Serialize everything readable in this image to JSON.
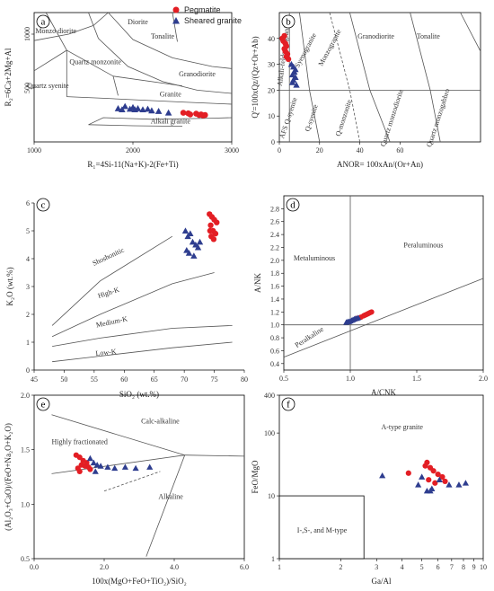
{
  "legend": {
    "items": [
      {
        "label": "Pegmatite",
        "marker": "circle",
        "color": "#e31e24"
      },
      {
        "label": "Sheared granite",
        "marker": "triangle",
        "color": "#2e3d8f"
      }
    ]
  },
  "chart_data": [
    {
      "panel": "a",
      "type": "scatter",
      "xlabel": "R₁=4Si-11(Na+K)-2(Fe+Ti)",
      "ylabel": "R₂=6Ca+2Mg+Al",
      "xlim": [
        1000,
        3000
      ],
      "ylim": [
        0,
        1200
      ],
      "xticks": [
        "1000",
        "2000",
        "3000"
      ],
      "yticks": [
        "500",
        "1000"
      ],
      "fields": [
        "Diorite",
        "Monzo diorite",
        "Tonalite",
        "Quartz monzonite",
        "Granodiorite",
        "Quartz syenite",
        "Granite",
        "Alkali granite"
      ],
      "series": [
        {
          "name": "Pegmatite",
          "x": [
            2510,
            2560,
            2580,
            2640,
            2670,
            2690,
            2710,
            2730
          ],
          "y": [
            270,
            265,
            255,
            262,
            250,
            255,
            245,
            250
          ]
        },
        {
          "name": "Sheared granite",
          "x": [
            1850,
            1890,
            1920,
            1970,
            2000,
            2020,
            2050,
            2100,
            2150,
            2190,
            2260,
            2360
          ],
          "y": [
            310,
            300,
            330,
            305,
            320,
            300,
            310,
            300,
            305,
            290,
            285,
            270
          ]
        }
      ]
    },
    {
      "panel": "b",
      "type": "scatter",
      "xlabel": "ANOR= 100xAn/(Or+An)",
      "ylabel": "Q'=100xQz/(Qz+Or+Ab)",
      "xlim": [
        0,
        100
      ],
      "ylim": [
        0,
        50
      ],
      "xticks": [
        "0",
        "20",
        "40",
        "60"
      ],
      "yticks": [
        "0",
        "10",
        "20",
        "30",
        "40"
      ],
      "fields": [
        "Alkali-feldspar granite",
        "Syenogranite",
        "Monzogranite",
        "Granodiorite",
        "Tonalite",
        "AFS Q-syenite",
        "Q-syenite",
        "Q-monzonite",
        "Quartz monzodiorite",
        "Quartz monzogabbro"
      ],
      "series": [
        {
          "name": "Pegmatite",
          "x": [
            1.5,
            2,
            2.5,
            3,
            3.5,
            2.5,
            3,
            4,
            3.5,
            4.5
          ],
          "y": [
            40,
            39,
            41,
            38,
            37,
            36,
            35,
            34,
            33,
            32
          ]
        },
        {
          "name": "Sheared granite",
          "x": [
            6,
            7,
            8,
            7.5,
            6.5,
            8,
            7,
            6.5,
            8.5
          ],
          "y": [
            30,
            29,
            28,
            27,
            26,
            25,
            24,
            23,
            22
          ]
        }
      ]
    },
    {
      "panel": "c",
      "type": "scatter",
      "xlabel": "SiO₂ (wt.%)",
      "ylabel": "K₂O (wt.%)",
      "xlim": [
        45,
        80
      ],
      "ylim": [
        0,
        6
      ],
      "xticks": [
        "45",
        "50",
        "55",
        "60",
        "65",
        "70",
        "75",
        "80"
      ],
      "yticks": [
        "0",
        "1",
        "2",
        "3",
        "4",
        "5",
        "6"
      ],
      "fields": [
        "Shoshonitic",
        "High-K",
        "Medium-K",
        "Low-K"
      ],
      "series": [
        {
          "name": "Pegmatite",
          "x": [
            74.2,
            74.6,
            75.0,
            74.4,
            74.8,
            75.2,
            74.5,
            74.9,
            75.4,
            74.3
          ],
          "y": [
            5.6,
            5.5,
            5.4,
            5.2,
            5.0,
            4.9,
            4.8,
            4.7,
            5.3,
            5.0
          ]
        },
        {
          "name": "Sheared granite",
          "x": [
            70.2,
            70.6,
            71.0,
            71.4,
            71.9,
            72.3,
            70.8,
            71.6,
            72.6,
            70.4
          ],
          "y": [
            5.0,
            4.8,
            4.9,
            4.6,
            4.5,
            4.4,
            4.2,
            4.1,
            4.6,
            4.3
          ]
        }
      ]
    },
    {
      "panel": "d",
      "type": "scatter",
      "xlabel": "A/CNK",
      "ylabel": "A/NK",
      "xlim": [
        0.5,
        2.0
      ],
      "ylim": [
        0.3,
        3.0
      ],
      "xticks": [
        "0.5",
        "1.0",
        "1.5",
        "2.0"
      ],
      "yticks": [
        "0.4",
        "0.6",
        "0.8",
        "1.0",
        "1.2",
        "1.4",
        "1.6",
        "1.8",
        "2.0",
        "2.2",
        "2.4",
        "2.6",
        "2.8"
      ],
      "fields": [
        "Metaluminous",
        "Peraluminous",
        "Peralkaline"
      ],
      "series": [
        {
          "name": "Pegmatite",
          "x": [
            1.05,
            1.08,
            1.1,
            1.12,
            1.14,
            1.16,
            1.11,
            1.13,
            1.15
          ],
          "y": [
            1.1,
            1.12,
            1.14,
            1.16,
            1.18,
            1.2,
            1.15,
            1.17,
            1.19
          ]
        },
        {
          "name": "Sheared granite",
          "x": [
            0.97,
            0.98,
            0.99,
            1.0,
            1.01,
            1.02,
            1.03,
            1.04,
            1.05,
            1.06
          ],
          "y": [
            1.04,
            1.05,
            1.05,
            1.06,
            1.07,
            1.08,
            1.09,
            1.1,
            1.1,
            1.11
          ]
        }
      ]
    },
    {
      "panel": "e",
      "type": "scatter",
      "xlabel": "100x(MgO+FeO+TiO₂)/SiO₂",
      "ylabel": "(Al₂O₃+CaO)/(FeO+Na₂O+K₂O)",
      "xlim": [
        0,
        6
      ],
      "ylim": [
        0.5,
        2.0
      ],
      "xticks": [
        "0.0",
        "2.0",
        "4.0",
        "6.0"
      ],
      "yticks": [
        "0.5",
        "1.0",
        "1.5",
        "2.0"
      ],
      "fields": [
        "Calc-alkaline",
        "Highly fractionated",
        "Alkaline"
      ],
      "series": [
        {
          "name": "Pegmatite",
          "x": [
            1.2,
            1.3,
            1.4,
            1.5,
            1.35,
            1.45,
            1.25,
            1.55,
            1.6,
            1.3
          ],
          "y": [
            1.45,
            1.43,
            1.4,
            1.38,
            1.36,
            1.35,
            1.33,
            1.34,
            1.32,
            1.3
          ]
        },
        {
          "name": "Sheared granite",
          "x": [
            1.6,
            1.7,
            1.8,
            1.9,
            2.1,
            2.3,
            2.6,
            2.9,
            3.3,
            1.75
          ],
          "y": [
            1.42,
            1.38,
            1.36,
            1.35,
            1.34,
            1.33,
            1.34,
            1.33,
            1.34,
            1.3
          ]
        }
      ]
    },
    {
      "panel": "f",
      "type": "scatter",
      "xlabel": "Ga/Al",
      "ylabel": "FeO/MgO",
      "xscale": "log",
      "yscale": "log",
      "xlim": [
        1,
        10
      ],
      "ylim": [
        1,
        400
      ],
      "xticks": [
        "1",
        "2",
        "3",
        "4",
        "5",
        "6",
        "7",
        "8",
        "9",
        "10"
      ],
      "yticks": [
        "1",
        "10",
        "100",
        "400"
      ],
      "fields": [
        "A-type granite",
        "I-,S-, and M-type"
      ],
      "series": [
        {
          "name": "Pegmatite",
          "x": [
            4.3,
            5.3,
            5.5,
            5.7,
            6.0,
            6.3,
            5.4,
            5.8,
            6.5,
            5.2
          ],
          "y": [
            23,
            34,
            28,
            25,
            22,
            20,
            18,
            16,
            17,
            30
          ]
        },
        {
          "name": "Sheared granite",
          "x": [
            3.2,
            4.8,
            5.3,
            5.6,
            6.1,
            6.8,
            7.6,
            8.2,
            5.5,
            5.0
          ],
          "y": [
            21,
            15,
            12,
            13,
            18,
            15,
            15,
            16,
            12,
            20
          ]
        }
      ]
    }
  ]
}
